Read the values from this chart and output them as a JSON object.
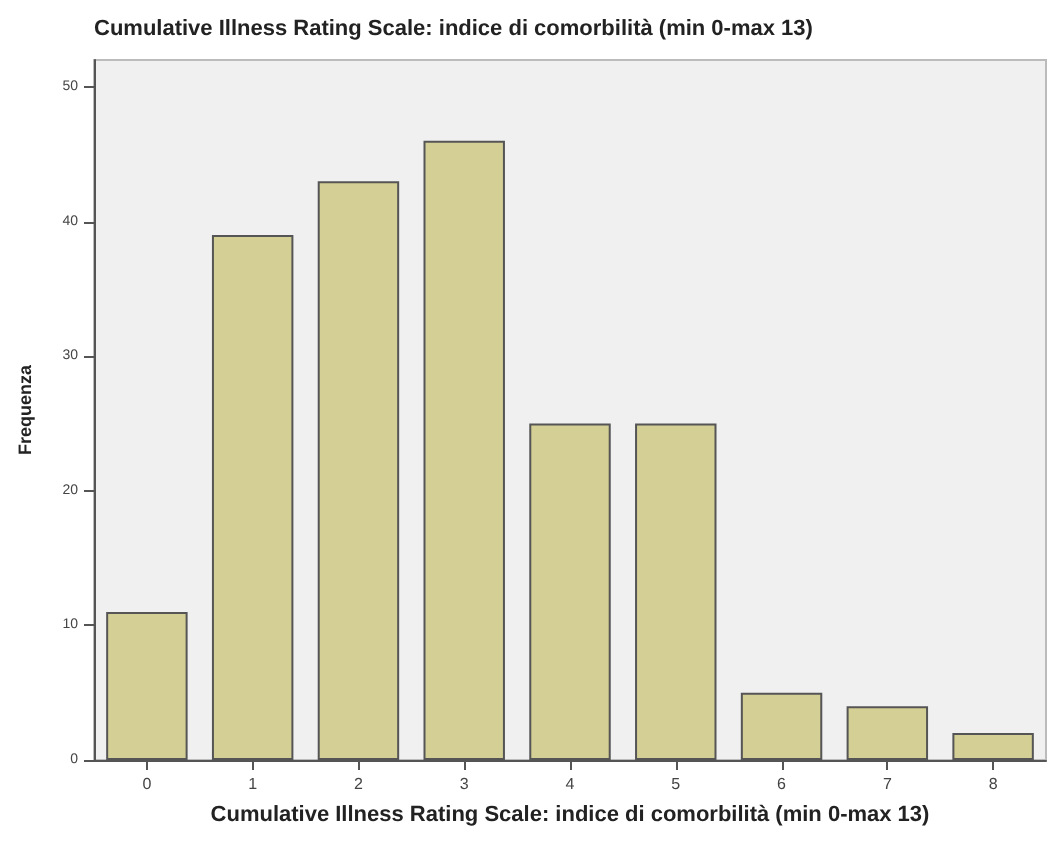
{
  "chart_data": {
    "type": "bar",
    "title": "Cumulative Illness Rating Scale: indice di comorbilità (min 0-max 13)",
    "xlabel": "Cumulative Illness Rating Scale: indice di comorbilità (min 0-max 13)",
    "ylabel": "Frequenza",
    "categories": [
      "0",
      "1",
      "2",
      "3",
      "4",
      "5",
      "6",
      "7",
      "8"
    ],
    "values": [
      11,
      39,
      43,
      46,
      25,
      25,
      5,
      4,
      2
    ],
    "color": "#d4cf95",
    "ylim": [
      0,
      52
    ],
    "yticks": [
      0,
      10,
      20,
      30,
      40,
      50
    ],
    "grid": false
  }
}
